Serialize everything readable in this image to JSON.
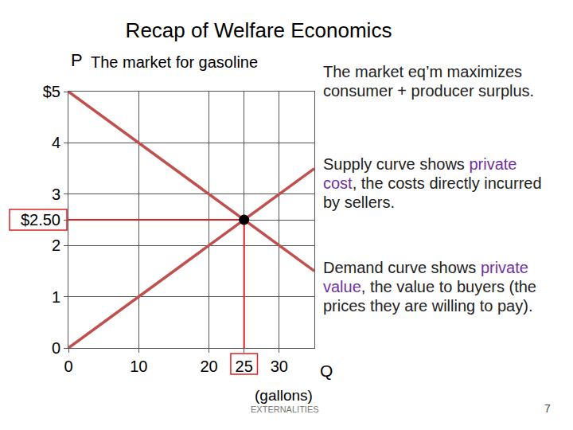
{
  "chart_data": {
    "type": "line",
    "title": "Recap of Welfare Economics",
    "subtitle": "The market for gasoline",
    "x_label": "Q",
    "x_label_note": "(gallons)",
    "y_label": "P",
    "xlim": [
      0,
      35
    ],
    "ylim": [
      0,
      5
    ],
    "xticks": [
      0,
      10,
      20,
      25,
      30
    ],
    "yticks": [
      0,
      1,
      2,
      {
        "value": 2.5,
        "label": "$2.50"
      },
      3,
      4,
      {
        "value": 5,
        "label": "$5"
      }
    ],
    "grid": true,
    "series": [
      {
        "color": "#c0504d",
        "x": [
          0,
          35
        ],
        "values": [
          0,
          3.5
        ]
      },
      {
        "color": "#c0504d",
        "x": [
          0,
          35
        ],
        "values": [
          5,
          1.5
        ]
      }
    ],
    "equilibrium": {
      "x": 25,
      "y": 2.5,
      "color": "#e02020",
      "marker": "circle"
    },
    "notes": [
      [
        {
          "text": "The market eq’m maximizes consumer + producer surplus."
        }
      ],
      [
        {
          "text": "Supply curve shows "
        },
        {
          "text": "private cost",
          "color": "#7030a0"
        },
        {
          "text": ", the costs directly incurred by sellers."
        }
      ],
      [
        {
          "text": "Demand curve shows "
        },
        {
          "text": "private value",
          "color": "#7030a0"
        },
        {
          "text": ", the value to buyers (the prices they are willing to pay)."
        }
      ]
    ],
    "footer": {
      "text": "EXTERNALITIES",
      "page": 7
    }
  }
}
